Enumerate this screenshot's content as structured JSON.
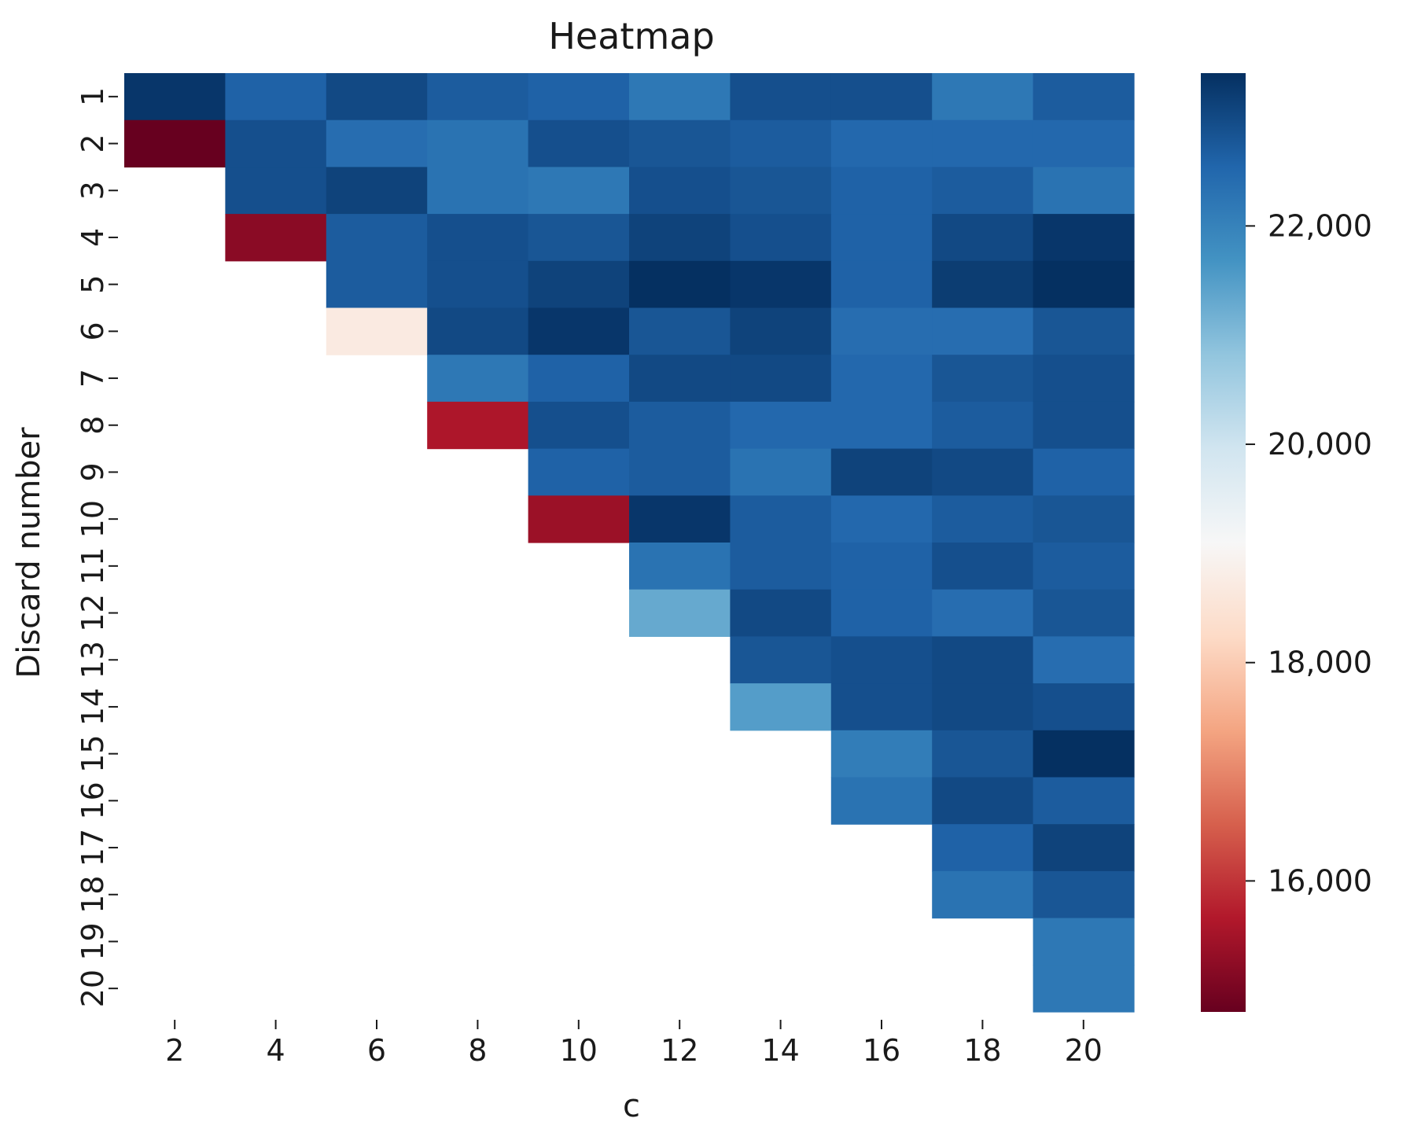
{
  "chart_data": {
    "type": "heatmap",
    "title": "Heatmap",
    "xlabel": "c",
    "ylabel": "Discard number",
    "x_ticks": [
      "2",
      "4",
      "6",
      "8",
      "10",
      "12",
      "14",
      "16",
      "18",
      "20"
    ],
    "y_ticks": [
      "1",
      "2",
      "3",
      "4",
      "5",
      "6",
      "7",
      "8",
      "9",
      "10",
      "11",
      "12",
      "13",
      "14",
      "15",
      "16",
      "17",
      "18",
      "19",
      "20"
    ],
    "colormap": "RdBu",
    "vmin": 14800,
    "vmax": 23400,
    "colorbar_ticks": [
      {
        "value": 22000,
        "label": "22,000"
      },
      {
        "value": 20000,
        "label": "20,000"
      },
      {
        "value": 18000,
        "label": "18,000"
      },
      {
        "value": 16000,
        "label": "16,000"
      }
    ],
    "grid": false,
    "values": [
      [
        23300,
        22600,
        23000,
        22700,
        22600,
        22200,
        22900,
        22900,
        22200,
        22700
      ],
      [
        14800,
        22900,
        22400,
        22300,
        22900,
        22800,
        22700,
        22500,
        22500,
        22500
      ],
      [
        null,
        22900,
        23100,
        22300,
        22200,
        22900,
        22800,
        22600,
        22700,
        22300
      ],
      [
        null,
        15200,
        22700,
        22900,
        22800,
        23100,
        22900,
        22600,
        23000,
        23300
      ],
      [
        null,
        null,
        22700,
        22900,
        23100,
        23400,
        23300,
        22600,
        23200,
        23400
      ],
      [
        null,
        null,
        18700,
        23000,
        23300,
        22800,
        23100,
        22400,
        22400,
        22800
      ],
      [
        null,
        null,
        null,
        22200,
        22600,
        23000,
        23000,
        22500,
        22800,
        22900
      ],
      [
        null,
        null,
        null,
        15600,
        22900,
        22700,
        22500,
        22500,
        22700,
        22900
      ],
      [
        null,
        null,
        null,
        null,
        22600,
        22700,
        22300,
        23100,
        23000,
        22600
      ],
      [
        null,
        null,
        null,
        null,
        15400,
        23300,
        22700,
        22500,
        22700,
        22800
      ],
      [
        null,
        null,
        null,
        null,
        null,
        22300,
        22700,
        22600,
        22900,
        22700
      ],
      [
        null,
        null,
        null,
        null,
        null,
        21300,
        23000,
        22600,
        22400,
        22800
      ],
      [
        null,
        null,
        null,
        null,
        null,
        null,
        22800,
        22900,
        23000,
        22400
      ],
      [
        null,
        null,
        null,
        null,
        null,
        null,
        21500,
        22900,
        23000,
        22900
      ],
      [
        null,
        null,
        null,
        null,
        null,
        null,
        null,
        22100,
        22800,
        23400
      ],
      [
        null,
        null,
        null,
        null,
        null,
        null,
        null,
        22300,
        23000,
        22700
      ],
      [
        null,
        null,
        null,
        null,
        null,
        null,
        null,
        null,
        22600,
        23100
      ],
      [
        null,
        null,
        null,
        null,
        null,
        null,
        null,
        null,
        22300,
        22800
      ],
      [
        null,
        null,
        null,
        null,
        null,
        null,
        null,
        null,
        null,
        22200
      ],
      [
        null,
        null,
        null,
        null,
        null,
        null,
        null,
        null,
        null,
        22200
      ]
    ]
  }
}
